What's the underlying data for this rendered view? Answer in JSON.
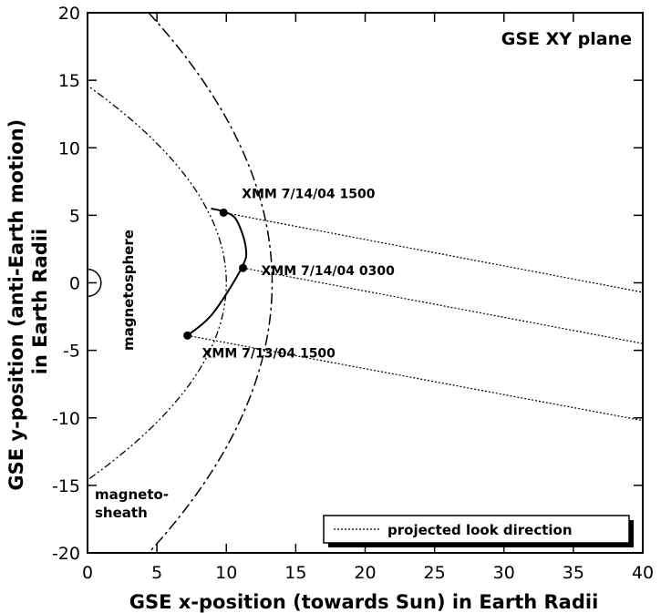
{
  "chart_data": {
    "type": "line",
    "title": "GSE XY plane",
    "xlabel": "GSE x-position (towards Sun) in Earth Radii",
    "ylabel_line1": "GSE y-position (anti-Earth motion)",
    "ylabel_line2": "in Earth Radii",
    "xlim": [
      0,
      40
    ],
    "ylim": [
      -20,
      20
    ],
    "x_ticks": [
      0,
      5,
      10,
      15,
      20,
      25,
      30,
      35,
      40
    ],
    "y_ticks": [
      20,
      15,
      10,
      5,
      0,
      -5,
      -10,
      -15,
      -20
    ],
    "x_tick_labels": [
      "0",
      "5",
      "10",
      "15",
      "20",
      "25",
      "30",
      "35",
      "40"
    ],
    "y_tick_labels": [
      "20",
      "15",
      "10",
      "5",
      "0",
      "-5",
      "-10",
      "-15",
      "-20"
    ],
    "grid": false,
    "legend_position": "bottom-right",
    "legend": {
      "label": "projected look direction"
    },
    "regions": {
      "magnetosphere": "magnetosphere",
      "magnetosheath": "magneto-\nsheath"
    },
    "boundaries": [
      {
        "kind": "magnetopause",
        "nose_x": 10.0,
        "flank_y_at_x0": 14.6
      },
      {
        "kind": "bow shock",
        "nose_x": 13.3,
        "points": [
          [
            4.4,
            20
          ],
          [
            13.3,
            0
          ],
          [
            4.4,
            -20
          ]
        ]
      }
    ],
    "orbit": [
      [
        7.2,
        -3.9
      ],
      [
        9.0,
        -2.3
      ],
      [
        11.1,
        1.1
      ],
      [
        11.4,
        2.6
      ],
      [
        10.7,
        4.7
      ],
      [
        9.7,
        5.3
      ],
      [
        8.9,
        5.5
      ]
    ],
    "positions": [
      {
        "label": "XMM  7/14/04  1500",
        "x": 9.8,
        "y": 5.2
      },
      {
        "label": "XMM  7/14/04  0300",
        "x": 11.2,
        "y": 1.1
      },
      {
        "label": "XMM  7/13/04  1500",
        "x": 7.2,
        "y": -3.9
      }
    ],
    "look_directions": [
      {
        "from": [
          9.8,
          5.2
        ],
        "to": [
          40,
          -0.7
        ]
      },
      {
        "from": [
          11.2,
          1.1
        ],
        "to": [
          40,
          -4.5
        ]
      },
      {
        "from": [
          7.2,
          -3.9
        ],
        "to": [
          40,
          -10.2
        ]
      }
    ],
    "earth": {
      "x": 0,
      "y": 0,
      "radius": 1
    }
  }
}
